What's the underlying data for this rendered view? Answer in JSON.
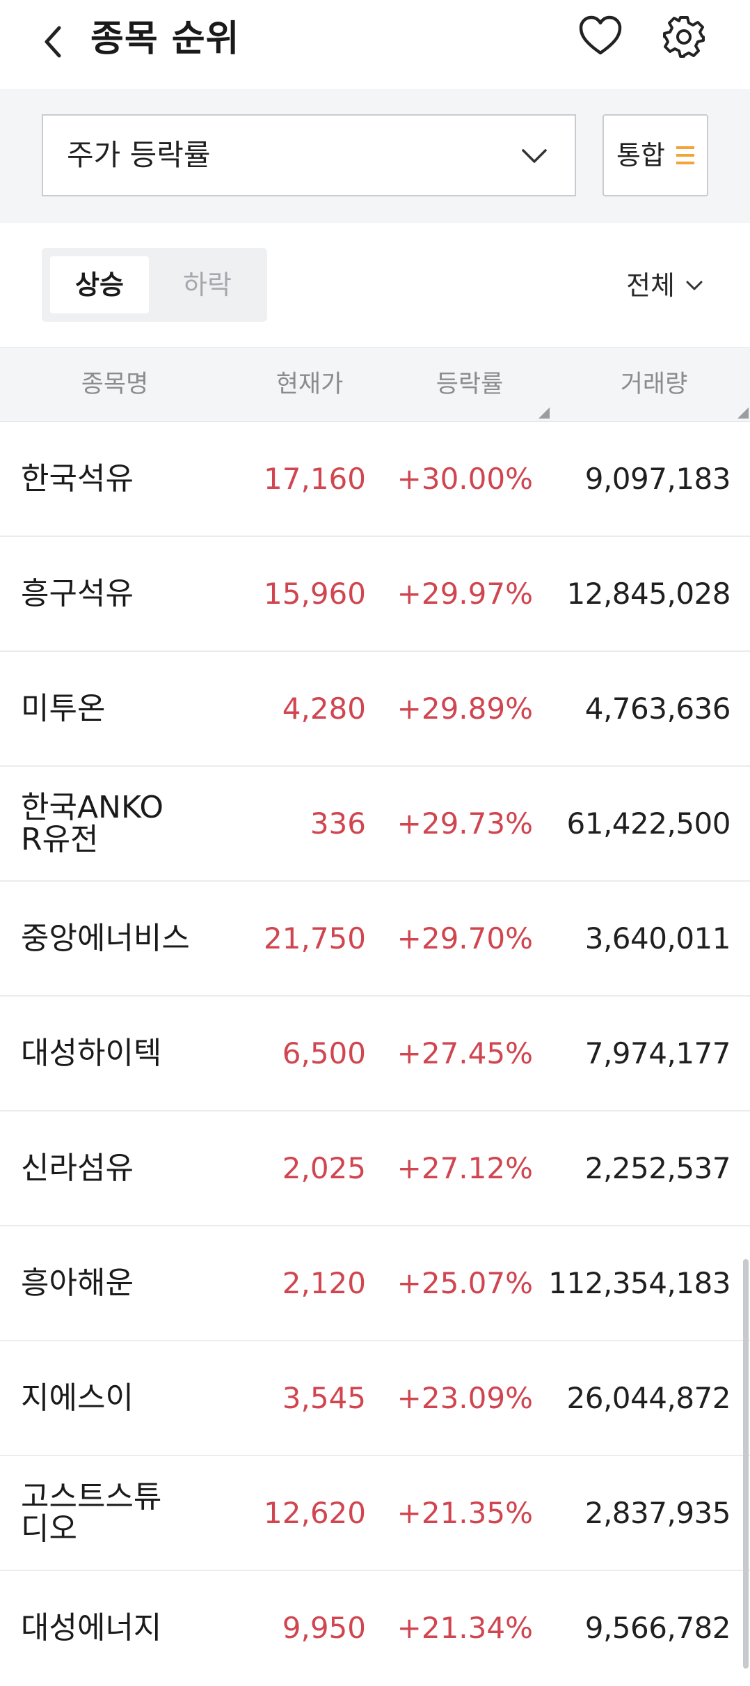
{
  "header": {
    "title": "종목 순위",
    "back_icon": "chevron-left-icon",
    "favorite_icon": "heart-icon",
    "settings_icon": "gear-icon"
  },
  "filter": {
    "selected_metric": "주가 등락률",
    "market_label": "통합",
    "accent_color": "#f2a33a"
  },
  "direction": {
    "up_label": "상승",
    "down_label": "하락",
    "active": "상승"
  },
  "scope": {
    "label": "전체"
  },
  "table": {
    "columns": [
      "종목명",
      "현재가",
      "등락률",
      "거래량"
    ],
    "rows": [
      {
        "name": "한국석유",
        "price": "17,160",
        "rate": "+30.00%",
        "volume": "9,097,183"
      },
      {
        "name": "흥구석유",
        "price": "15,960",
        "rate": "+29.97%",
        "volume": "12,845,028"
      },
      {
        "name": "미투온",
        "price": "4,280",
        "rate": "+29.89%",
        "volume": "4,763,636"
      },
      {
        "name": "한국ANKOR유전",
        "price": "336",
        "rate": "+29.73%",
        "volume": "61,422,500"
      },
      {
        "name": "중앙에너비스",
        "price": "21,750",
        "rate": "+29.70%",
        "volume": "3,640,011"
      },
      {
        "name": "대성하이텍",
        "price": "6,500",
        "rate": "+27.45%",
        "volume": "7,974,177"
      },
      {
        "name": "신라섬유",
        "price": "2,025",
        "rate": "+27.12%",
        "volume": "2,252,537"
      },
      {
        "name": "흥아해운",
        "price": "2,120",
        "rate": "+25.07%",
        "volume": "112,354,183"
      },
      {
        "name": "지에스이",
        "price": "3,545",
        "rate": "+23.09%",
        "volume": "26,044,872"
      },
      {
        "name": "고스트스튜디오",
        "price": "12,620",
        "rate": "+21.35%",
        "volume": "2,837,935"
      },
      {
        "name": "대성에너지",
        "price": "9,950",
        "rate": "+21.34%",
        "volume": "9,566,782"
      }
    ]
  },
  "colors": {
    "up_red": "#d0454f",
    "header_bg": "#f4f5f7"
  }
}
